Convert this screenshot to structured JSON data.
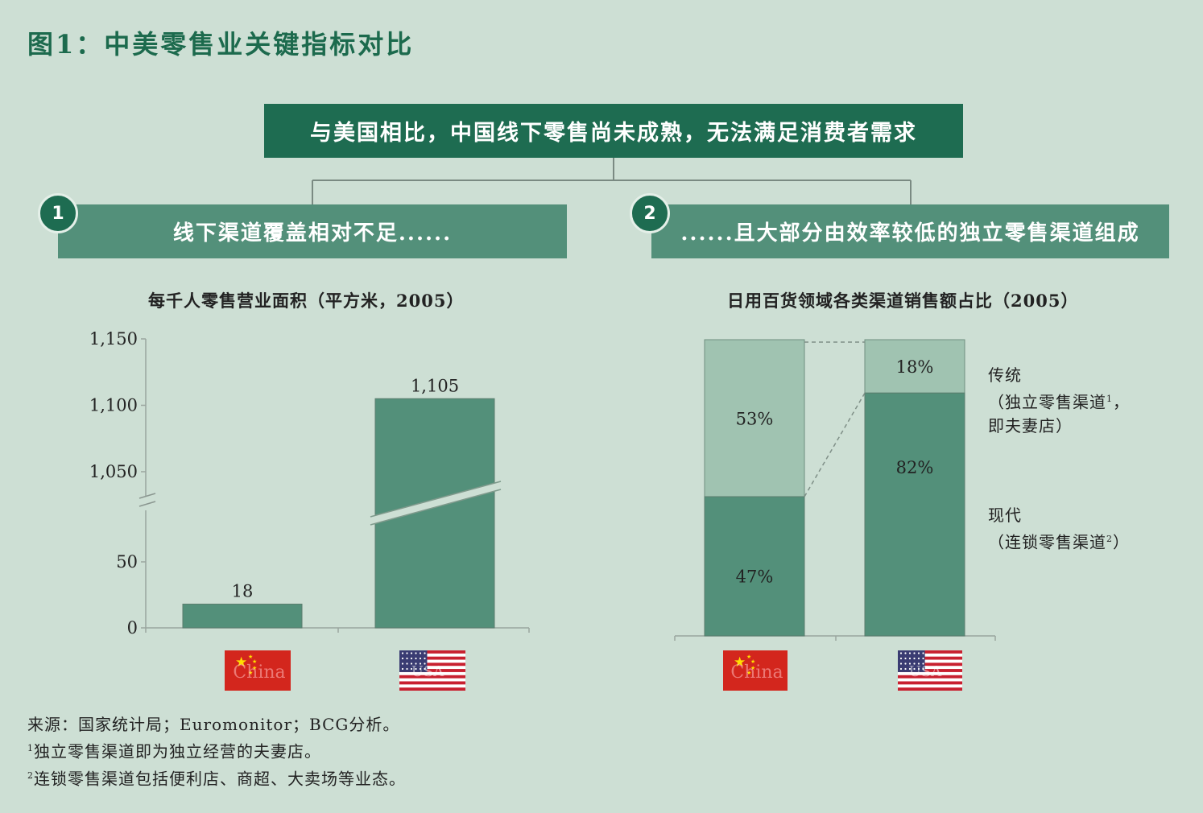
{
  "figure_title": "图1：中美零售业关键指标对比",
  "headline": "与美国相比，中国线下零售尚未成熟，无法满足消费者需求",
  "sections": [
    {
      "number": "1",
      "label": "线下渠道覆盖相对不足......"
    },
    {
      "number": "2",
      "label": "......且大部分由效率较低的独立零售渠道组成"
    }
  ],
  "colors": {
    "background": "#cddfd4",
    "dark_green": "#1e6c51",
    "bar_green": "#53907a",
    "light_green": "#a0c3b1",
    "flag_red": "#d3261d"
  },
  "flags": [
    {
      "country": "China",
      "text": "China",
      "icon": "china-flag-icon"
    },
    {
      "country": "USA",
      "text": "USA",
      "icon": "usa-flag-icon"
    }
  ],
  "chart_data": [
    {
      "type": "bar",
      "title": "每千人零售营业面积（平方米，2005）",
      "categories": [
        "China",
        "USA"
      ],
      "values": [
        18,
        1105
      ],
      "value_labels": [
        "18",
        "1,105"
      ],
      "y_axis": {
        "broken": true,
        "lower_range": [
          0,
          50
        ],
        "upper_range": [
          1050,
          1150
        ],
        "ticks": [
          "0",
          "50",
          "1,050",
          "1,100",
          "1,150"
        ]
      },
      "grid": false
    },
    {
      "type": "bar",
      "stacked": true,
      "percent": true,
      "title": "日用百货领域各类渠道销售额占比（2005）",
      "categories": [
        "China",
        "USA"
      ],
      "series": [
        {
          "name": "现代（连锁零售渠道²）",
          "values": [
            47,
            82
          ],
          "value_labels": [
            "47%",
            "82%"
          ],
          "color": "#53907a"
        },
        {
          "name": "传统（独立零售渠道¹，即夫妻店）",
          "values": [
            53,
            18
          ],
          "value_labels": [
            "53%",
            "18%"
          ],
          "color": "#a0c3b1"
        }
      ],
      "legend": {
        "placement": "right",
        "traditional": {
          "line1": "传统",
          "line2": "（独立零售渠道",
          "sup": "1",
          "line2_end": "，",
          "line3": "即夫妻店）"
        },
        "modern": {
          "line1": "现代",
          "line2": "（连锁零售渠道",
          "sup": "2",
          "line2_end": "）"
        }
      },
      "grid": false
    }
  ],
  "notes": {
    "source": "来源：国家统计局；Euromonitor；BCG分析。",
    "note1_sup": "1",
    "note1": "独立零售渠道即为独立经营的夫妻店。",
    "note2_sup": "2",
    "note2": "连锁零售渠道包括便利店、商超、大卖场等业态。"
  }
}
